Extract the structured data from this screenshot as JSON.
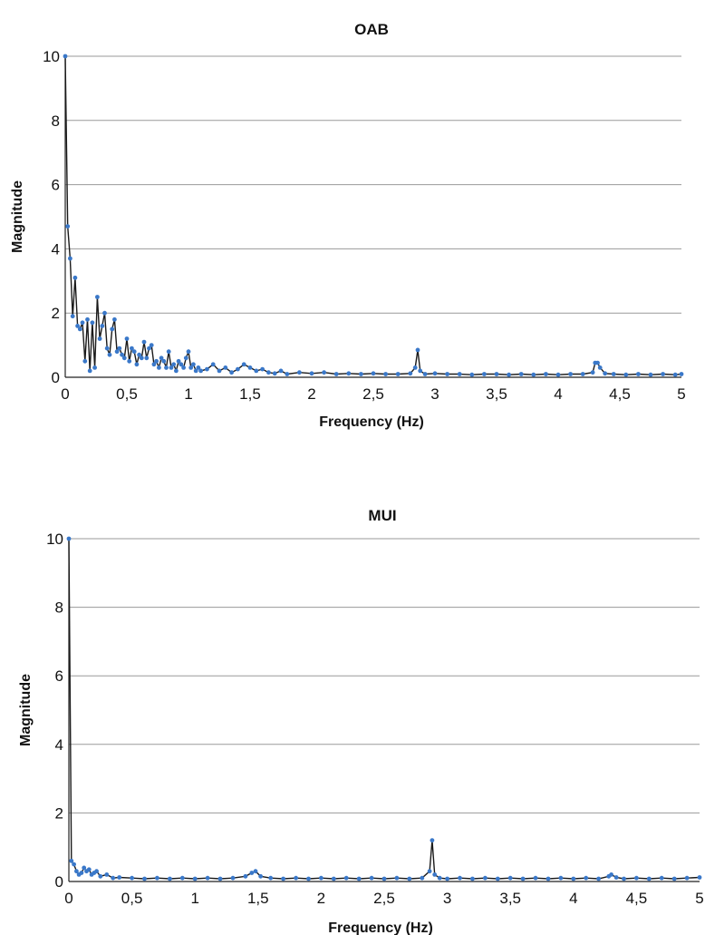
{
  "chart_data": [
    {
      "type": "line",
      "title": "OAB",
      "xlabel": "Frequency (Hz)",
      "ylabel": "Magnitude",
      "xlim": [
        0,
        5
      ],
      "ylim": [
        0,
        10
      ],
      "x_ticks": [
        "0",
        "0,5",
        "1",
        "1,5",
        "2",
        "2,5",
        "3",
        "3,5",
        "4",
        "4,5",
        "5"
      ],
      "y_ticks": [
        "0",
        "2",
        "4",
        "6",
        "8",
        "10"
      ],
      "grid": "horizontal",
      "line_color": "#1a1a1a",
      "marker_color": "#3a78c9",
      "series": [
        {
          "x": [
            0.0,
            0.02,
            0.04,
            0.06,
            0.08,
            0.1,
            0.12,
            0.14,
            0.16,
            0.18,
            0.2,
            0.22,
            0.24,
            0.26,
            0.28,
            0.3,
            0.32,
            0.34,
            0.36,
            0.38,
            0.4,
            0.42,
            0.44,
            0.46,
            0.48,
            0.5,
            0.52,
            0.54,
            0.56,
            0.58,
            0.6,
            0.62,
            0.64,
            0.66,
            0.68,
            0.7,
            0.72,
            0.74,
            0.76,
            0.78,
            0.8,
            0.82,
            0.84,
            0.86,
            0.88,
            0.9,
            0.92,
            0.94,
            0.96,
            0.98,
            1.0,
            1.02,
            1.04,
            1.06,
            1.08,
            1.1,
            1.15,
            1.2,
            1.25,
            1.3,
            1.35,
            1.4,
            1.45,
            1.5,
            1.55,
            1.6,
            1.65,
            1.7,
            1.75,
            1.8,
            1.9,
            2.0,
            2.1,
            2.2,
            2.3,
            2.4,
            2.5,
            2.6,
            2.7,
            2.8,
            2.84,
            2.86,
            2.88,
            2.92,
            3.0,
            3.1,
            3.2,
            3.3,
            3.4,
            3.5,
            3.6,
            3.7,
            3.8,
            3.9,
            4.0,
            4.1,
            4.2,
            4.28,
            4.3,
            4.32,
            4.34,
            4.38,
            4.45,
            4.55,
            4.65,
            4.75,
            4.85,
            4.95,
            5.0
          ],
          "y": [
            10.0,
            4.7,
            3.7,
            1.9,
            3.1,
            1.6,
            1.5,
            1.7,
            0.5,
            1.8,
            0.2,
            1.7,
            0.3,
            2.5,
            1.2,
            1.6,
            2.0,
            0.9,
            0.7,
            1.5,
            1.8,
            0.8,
            0.9,
            0.7,
            0.6,
            1.2,
            0.5,
            0.9,
            0.8,
            0.4,
            0.7,
            0.6,
            1.1,
            0.6,
            0.9,
            1.0,
            0.4,
            0.5,
            0.3,
            0.6,
            0.5,
            0.3,
            0.8,
            0.3,
            0.4,
            0.2,
            0.5,
            0.4,
            0.3,
            0.6,
            0.8,
            0.3,
            0.4,
            0.2,
            0.3,
            0.2,
            0.25,
            0.4,
            0.2,
            0.3,
            0.15,
            0.25,
            0.4,
            0.3,
            0.2,
            0.25,
            0.15,
            0.12,
            0.2,
            0.1,
            0.15,
            0.12,
            0.15,
            0.1,
            0.12,
            0.1,
            0.12,
            0.1,
            0.1,
            0.12,
            0.3,
            0.85,
            0.2,
            0.1,
            0.12,
            0.1,
            0.1,
            0.08,
            0.1,
            0.1,
            0.08,
            0.1,
            0.08,
            0.1,
            0.08,
            0.1,
            0.1,
            0.15,
            0.45,
            0.45,
            0.3,
            0.12,
            0.1,
            0.08,
            0.1,
            0.08,
            0.1,
            0.08,
            0.1
          ]
        }
      ]
    },
    {
      "type": "line",
      "title": "MUI",
      "xlabel": "Frequency (Hz)",
      "ylabel": "Magnitude",
      "xlim": [
        0,
        5
      ],
      "ylim": [
        0,
        10
      ],
      "x_ticks": [
        "0",
        "0,5",
        "1",
        "1,5",
        "2",
        "2,5",
        "3",
        "3,5",
        "4",
        "4,5",
        "5"
      ],
      "y_ticks": [
        "0",
        "2",
        "4",
        "6",
        "8",
        "10"
      ],
      "grid": "horizontal",
      "line_color": "#1a1a1a",
      "marker_color": "#3a78c9",
      "series": [
        {
          "x": [
            0.0,
            0.02,
            0.04,
            0.06,
            0.08,
            0.1,
            0.12,
            0.14,
            0.16,
            0.18,
            0.2,
            0.22,
            0.25,
            0.3,
            0.35,
            0.4,
            0.5,
            0.6,
            0.7,
            0.8,
            0.9,
            1.0,
            1.1,
            1.2,
            1.3,
            1.4,
            1.45,
            1.48,
            1.52,
            1.6,
            1.7,
            1.8,
            1.9,
            2.0,
            2.1,
            2.2,
            2.3,
            2.4,
            2.5,
            2.6,
            2.7,
            2.8,
            2.86,
            2.88,
            2.9,
            2.94,
            3.0,
            3.1,
            3.2,
            3.3,
            3.4,
            3.5,
            3.6,
            3.7,
            3.8,
            3.9,
            4.0,
            4.1,
            4.2,
            4.28,
            4.3,
            4.34,
            4.4,
            4.5,
            4.6,
            4.7,
            4.8,
            4.9,
            5.0
          ],
          "y": [
            10.0,
            0.6,
            0.5,
            0.3,
            0.2,
            0.25,
            0.4,
            0.3,
            0.35,
            0.2,
            0.25,
            0.3,
            0.15,
            0.2,
            0.1,
            0.12,
            0.1,
            0.08,
            0.1,
            0.08,
            0.1,
            0.08,
            0.1,
            0.08,
            0.1,
            0.15,
            0.25,
            0.3,
            0.15,
            0.1,
            0.08,
            0.1,
            0.08,
            0.1,
            0.08,
            0.1,
            0.08,
            0.1,
            0.08,
            0.1,
            0.08,
            0.1,
            0.3,
            1.2,
            0.2,
            0.1,
            0.08,
            0.1,
            0.08,
            0.1,
            0.08,
            0.1,
            0.08,
            0.1,
            0.08,
            0.1,
            0.08,
            0.1,
            0.08,
            0.15,
            0.2,
            0.12,
            0.08,
            0.1,
            0.08,
            0.1,
            0.08,
            0.1,
            0.12
          ]
        }
      ]
    }
  ]
}
